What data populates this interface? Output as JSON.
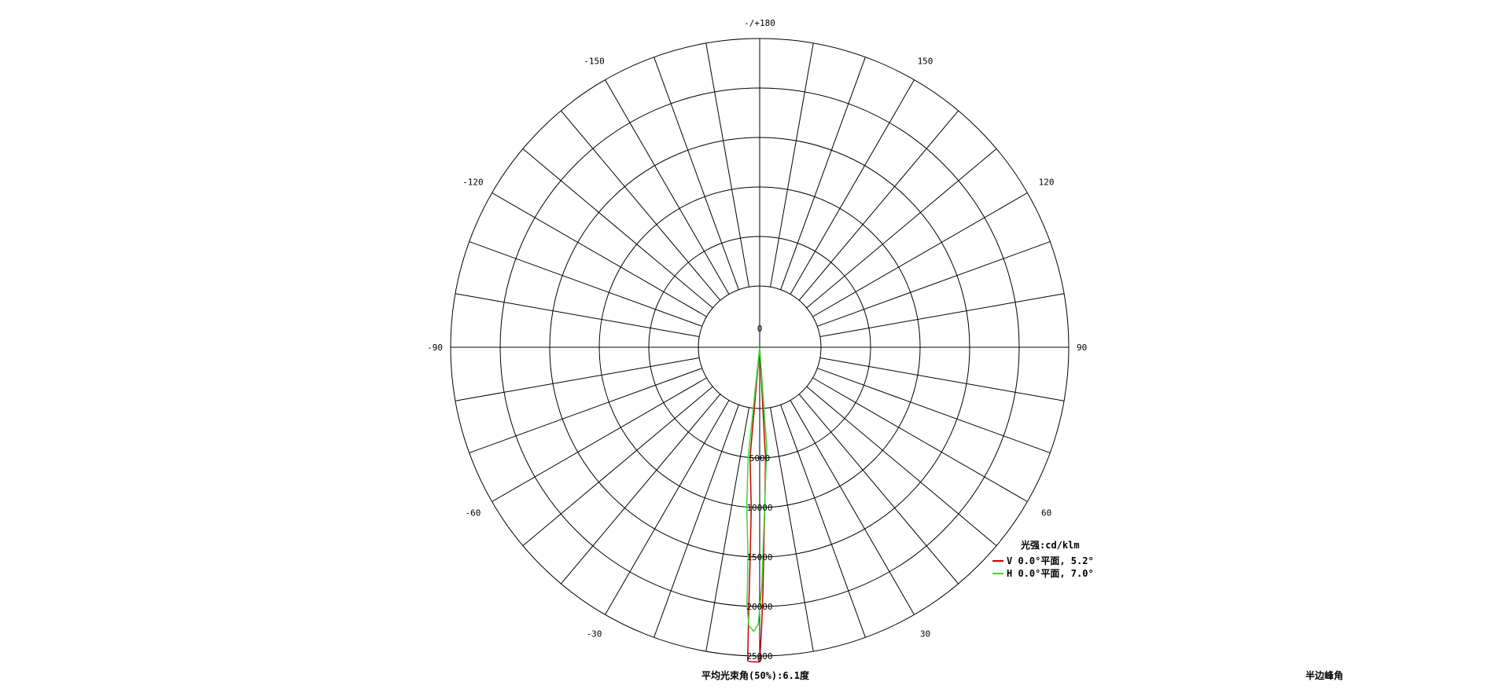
{
  "chart_data": {
    "type": "polar",
    "title": "",
    "unit_label": "光强:cd/klm",
    "angle_labels": [
      {
        "angle": 180,
        "text": "-/+180"
      },
      {
        "angle": 150,
        "text": "150"
      },
      {
        "angle": -150,
        "text": "-150"
      },
      {
        "angle": 120,
        "text": "120"
      },
      {
        "angle": -120,
        "text": "-120"
      },
      {
        "angle": 90,
        "text": "90"
      },
      {
        "angle": -90,
        "text": "-90"
      },
      {
        "angle": 60,
        "text": "60"
      },
      {
        "angle": -60,
        "text": "-60"
      },
      {
        "angle": 30,
        "text": "30"
      },
      {
        "angle": -30,
        "text": "-30"
      },
      {
        "angle": 0,
        "text": "0"
      }
    ],
    "radial_ticks": [
      {
        "value": 0,
        "text": "0"
      },
      {
        "value": 5000,
        "text": "5000"
      },
      {
        "value": 10000,
        "text": "10000"
      },
      {
        "value": 15000,
        "text": "15000"
      },
      {
        "value": 20000,
        "text": "20000"
      },
      {
        "value": 25000,
        "text": "25000"
      }
    ],
    "r_max": 25000,
    "spoke_step_deg": 10,
    "series": [
      {
        "name": "V 0.0°平面, 5.2°",
        "color": "#cc0000",
        "points": [
          [
            -5.0,
            0
          ],
          [
            -5.0,
            5000
          ],
          [
            -3.0,
            10000
          ],
          [
            -2.6,
            15000
          ],
          [
            -2.4,
            20000
          ],
          [
            -2.2,
            25500
          ],
          [
            -1.6,
            25600
          ],
          [
            -0.6,
            25600
          ],
          [
            0,
            25600
          ],
          [
            0.4,
            22000
          ],
          [
            0.8,
            18000
          ],
          [
            1.2,
            14000
          ],
          [
            2.0,
            9000
          ],
          [
            3.0,
            5000
          ],
          [
            5.0,
            0
          ]
        ]
      },
      {
        "name": "H 0.0°平面, 7.0°",
        "color": "#33dd33",
        "points": [
          [
            -8.0,
            0
          ],
          [
            -6.0,
            5000
          ],
          [
            -4.6,
            10000
          ],
          [
            -3.2,
            15000
          ],
          [
            -2.8,
            20000
          ],
          [
            -2.2,
            22000
          ],
          [
            -1.2,
            22500
          ],
          [
            -0.3,
            21800
          ],
          [
            0.5,
            18000
          ],
          [
            1.0,
            14000
          ],
          [
            1.8,
            10000
          ],
          [
            2.6,
            7000
          ],
          [
            4.0,
            4000
          ],
          [
            8.0,
            0
          ]
        ]
      }
    ],
    "footer_label": "平均光束角(50%):6.1度",
    "corner_label": "半边峰角"
  }
}
